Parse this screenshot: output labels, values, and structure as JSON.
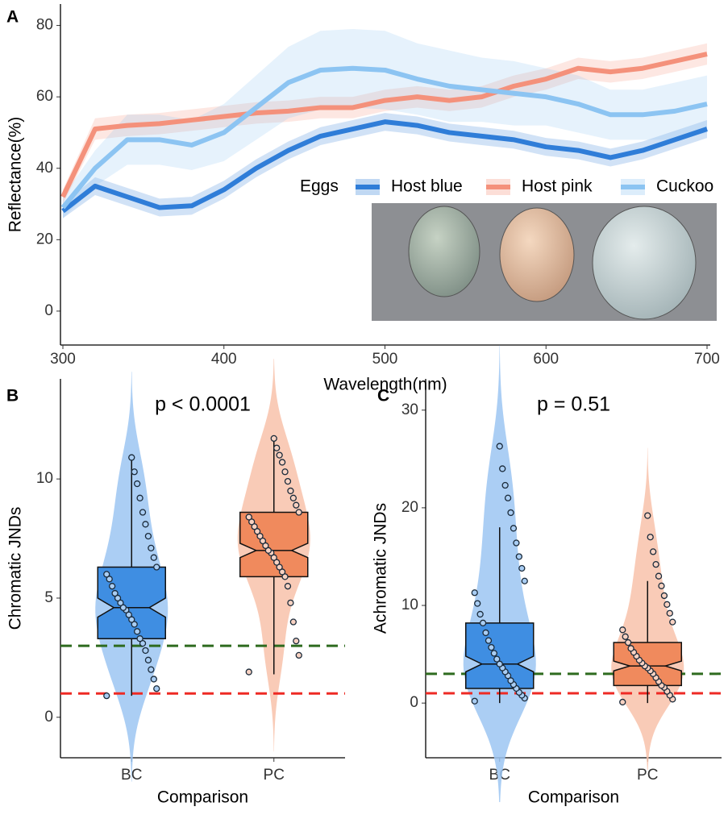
{
  "chart_data": [
    {
      "type": "line",
      "panel_label": "A",
      "xlabel": "Wavelength(nm)",
      "ylabel": "Reflectance(%)",
      "legend_title": "Eggs",
      "legend": "inside-right",
      "x": [
        300,
        320,
        340,
        360,
        380,
        400,
        420,
        440,
        460,
        480,
        500,
        520,
        540,
        560,
        580,
        600,
        620,
        640,
        660,
        680,
        700
      ],
      "series": [
        {
          "name": "Host blue",
          "color": "#2f7dd8",
          "values": [
            28,
            35,
            32,
            29,
            29.5,
            34,
            40,
            45,
            49,
            51,
            53,
            52,
            50,
            49,
            48,
            46,
            45,
            43,
            45,
            48,
            51
          ],
          "error": [
            2,
            2.5,
            2.5,
            2.5,
            2.5,
            2.5,
            2.5,
            2.5,
            2.5,
            2.5,
            2.5,
            2.5,
            2.5,
            2.5,
            2.5,
            2.5,
            2.5,
            2.5,
            2.5,
            2.5,
            2.5
          ]
        },
        {
          "name": "Host pink",
          "color": "#f4917b",
          "values": [
            32,
            51,
            52,
            52.5,
            53.5,
            54.5,
            55.5,
            56,
            57,
            57,
            59,
            60,
            59,
            60,
            63,
            65,
            68,
            67,
            68,
            70,
            72
          ],
          "error": [
            2,
            3,
            3,
            3,
            3,
            3,
            3,
            3,
            3,
            3,
            3,
            3,
            3,
            3,
            3,
            3,
            3,
            3,
            3,
            3,
            3
          ]
        },
        {
          "name": "Cuckoo",
          "color": "#8cc4f2",
          "values": [
            29,
            40,
            48,
            48,
            46.5,
            50,
            57,
            64,
            67.5,
            68,
            67.5,
            65,
            63,
            62,
            61,
            60,
            58,
            55,
            55,
            56,
            58
          ],
          "error": [
            3,
            5,
            7,
            7,
            7,
            8,
            9,
            10,
            11,
            11,
            11,
            10,
            10,
            9,
            9,
            8,
            8,
            7,
            7,
            8,
            8
          ]
        }
      ],
      "xlim": [
        298.5,
        702
      ],
      "ylim": [
        -9.5,
        86
      ],
      "xticks": [
        300,
        400,
        500,
        600,
        700
      ],
      "yticks": [
        0,
        20,
        40,
        60,
        80
      ]
    },
    {
      "type": "violin",
      "panel_label": "B",
      "title": "p < 0.0001",
      "xlabel": "Comparison",
      "ylabel": "Chromatic JNDs",
      "categories": [
        "BC",
        "PC"
      ],
      "box_colors": [
        "#3f8ee2",
        "#f08a5d"
      ],
      "violin_colors": [
        "#9cc6f2",
        "#f8c2aa"
      ],
      "point_colors": [
        "#a9cdf3",
        "#f8d2c2"
      ],
      "boxes": [
        {
          "q1": 3.3,
          "median": 4.6,
          "q3": 6.3,
          "whisker_low": 0.9,
          "whisker_high": 11,
          "notch_low": 4.2,
          "notch_high": 5.0
        },
        {
          "q1": 5.9,
          "median": 7.0,
          "q3": 8.6,
          "whisker_low": 1.8,
          "whisker_high": 11.7,
          "notch_low": 6.7,
          "notch_high": 7.3
        }
      ],
      "points": [
        [
          0.9,
          1.2,
          1.6,
          2.0,
          2.4,
          2.8,
          3.1,
          3.3,
          3.6,
          3.9,
          4.1,
          4.3,
          4.5,
          4.6,
          4.8,
          5.0,
          5.2,
          5.5,
          5.8,
          6.0,
          6.3,
          6.7,
          7.1,
          7.6,
          8.1,
          8.6,
          9.2,
          9.8,
          10.3,
          10.9
        ],
        [
          1.9,
          2.6,
          3.2,
          4.0,
          4.8,
          5.5,
          5.9,
          6.1,
          6.3,
          6.5,
          6.7,
          6.9,
          7.0,
          7.2,
          7.4,
          7.6,
          7.8,
          8.0,
          8.2,
          8.4,
          8.6,
          8.9,
          9.2,
          9.5,
          9.9,
          10.3,
          10.7,
          11.0,
          11.3,
          11.7
        ]
      ],
      "reference_lines": [
        {
          "value": 3,
          "color": "#2e6b1f"
        },
        {
          "value": 1,
          "color": "#ee2a24"
        }
      ],
      "ylim": [
        -1.7,
        14.2
      ],
      "yticks": [
        0,
        5,
        10
      ]
    },
    {
      "type": "violin",
      "panel_label": "C",
      "title": "p = 0.51",
      "xlabel": "Comparison",
      "ylabel": "Achromatic JNDs",
      "categories": [
        "BC",
        "PC"
      ],
      "box_colors": [
        "#3f8ee2",
        "#f08a5d"
      ],
      "violin_colors": [
        "#9cc6f2",
        "#f8c2aa"
      ],
      "point_colors": [
        "#a9cdf3",
        "#f8d2c2"
      ],
      "boxes": [
        {
          "q1": 1.5,
          "median": 4.0,
          "q3": 8.2,
          "whisker_low": 0,
          "whisker_high": 18,
          "notch_low": 3.2,
          "notch_high": 4.8
        },
        {
          "q1": 1.8,
          "median": 3.8,
          "q3": 6.2,
          "whisker_low": 0,
          "whisker_high": 12.5,
          "notch_low": 3.3,
          "notch_high": 4.3
        }
      ],
      "points": [
        [
          0.2,
          0.5,
          0.8,
          1.1,
          1.5,
          1.9,
          2.3,
          2.8,
          3.2,
          3.6,
          4.0,
          4.5,
          5.1,
          5.7,
          6.4,
          7.2,
          8.2,
          9.1,
          10.2,
          11.3,
          12.5,
          13.8,
          15.0,
          16.4,
          17.9,
          19.5,
          21.0,
          22.3,
          24.0,
          26.3
        ],
        [
          0.1,
          0.4,
          0.8,
          1.2,
          1.6,
          1.8,
          2.2,
          2.6,
          3.0,
          3.3,
          3.6,
          3.8,
          4.1,
          4.4,
          4.8,
          5.2,
          5.6,
          6.2,
          6.8,
          7.5,
          8.3,
          9.2,
          10.1,
          11.0,
          12.0,
          13.0,
          14.2,
          15.5,
          17.0,
          19.2
        ]
      ],
      "reference_lines": [
        {
          "value": 3,
          "color": "#2e6b1f"
        },
        {
          "value": 1,
          "color": "#ee2a24"
        }
      ],
      "ylim": [
        -5.6,
        33.2
      ],
      "yticks": [
        0,
        10,
        20,
        30
      ]
    }
  ]
}
